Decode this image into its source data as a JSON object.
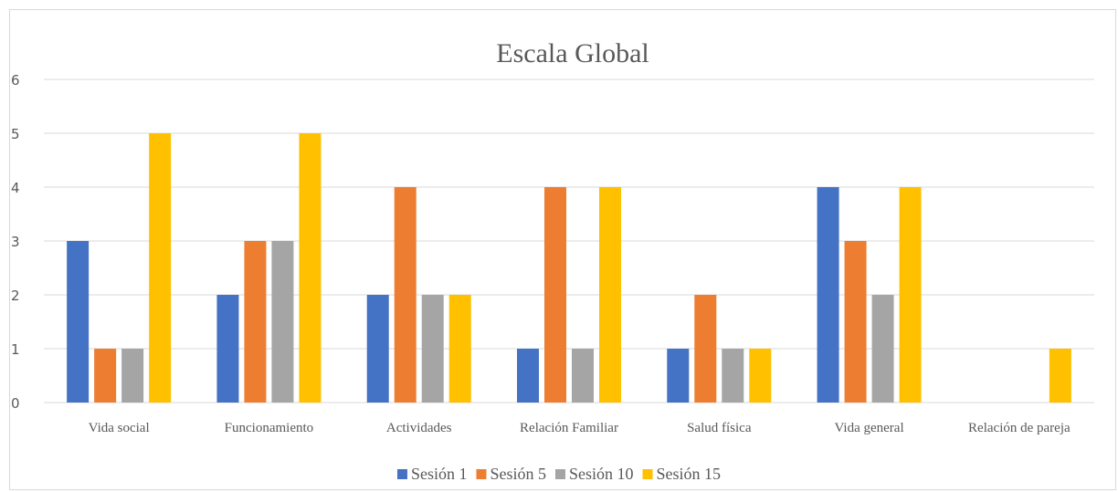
{
  "chart_data": {
    "type": "bar",
    "title": "Escala Global",
    "xlabel": "",
    "ylabel": "",
    "ylim": [
      0,
      6
    ],
    "yticks": [
      0,
      1,
      2,
      3,
      4,
      5,
      6
    ],
    "grid": true,
    "legend_position": "bottom",
    "categories": [
      "Vida social",
      "Funcionamiento",
      "Actividades",
      "Relación Familiar",
      "Salud física",
      "Vida general",
      "Relación de pareja"
    ],
    "series": [
      {
        "name": "Sesión 1",
        "color": "#4472C4",
        "values": [
          3,
          2,
          2,
          1,
          1,
          4,
          0
        ]
      },
      {
        "name": "Sesión 5",
        "color": "#ED7D31",
        "values": [
          1,
          3,
          4,
          4,
          2,
          3,
          0
        ]
      },
      {
        "name": "Sesión 10",
        "color": "#A5A5A5",
        "values": [
          1,
          3,
          2,
          1,
          1,
          2,
          0
        ]
      },
      {
        "name": "Sesión 15",
        "color": "#FFC000",
        "values": [
          5,
          5,
          2,
          4,
          1,
          4,
          1
        ]
      }
    ]
  }
}
